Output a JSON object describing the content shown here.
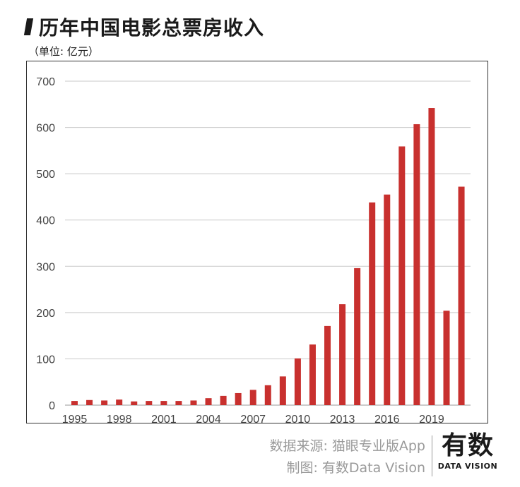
{
  "header": {
    "title": "历年中国电影总票房收入",
    "unit": "（单位: 亿元）"
  },
  "footer": {
    "source": "数据来源: 猫眼专业版App",
    "credit": "制图: 有数Data Vision",
    "logo_main": "有数",
    "logo_sub": "DATA VISION"
  },
  "colors": {
    "bar": "#c8302e",
    "grid": "#c9c9c9",
    "tick_text": "#444444"
  },
  "chart_data": {
    "type": "bar",
    "title": "历年中国电影总票房收入",
    "ylabel": "（单位: 亿元）",
    "xlabel": "",
    "categories": [
      "1995",
      "1996",
      "1997",
      "1998",
      "1999",
      "2000",
      "2001",
      "2002",
      "2003",
      "2004",
      "2005",
      "2006",
      "2007",
      "2008",
      "2009",
      "2010",
      "2011",
      "2012",
      "2013",
      "2014",
      "2015",
      "2016",
      "2017",
      "2018",
      "2019",
      "2020",
      "2021"
    ],
    "x_tick_labels": [
      "1995",
      "1998",
      "2001",
      "2004",
      "2007",
      "2010",
      "2013",
      "2016",
      "2019"
    ],
    "values": [
      9,
      11,
      10,
      12,
      8,
      9,
      9,
      9,
      10,
      15,
      20,
      26,
      33,
      43,
      62,
      101,
      131,
      171,
      218,
      296,
      438,
      455,
      559,
      607,
      642,
      204,
      472
    ],
    "ylim": [
      0,
      700
    ],
    "yticks": [
      0,
      100,
      200,
      300,
      400,
      500,
      600,
      700
    ],
    "grid": true,
    "legend": "none"
  }
}
